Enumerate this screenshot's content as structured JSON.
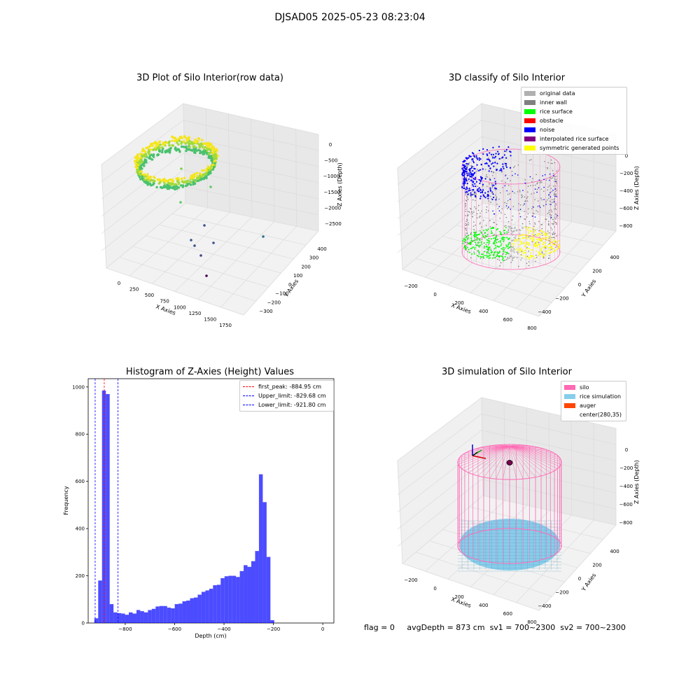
{
  "suptitle": "DJSAD05 2025-05-23 08:23:04",
  "panels": {
    "raw": {
      "title": "3D Plot of Silo Interior(row data)",
      "xlabel": "X Axies",
      "ylabel": "Y Axies",
      "zlabel": "Z Axies (Depth)",
      "xticks": [
        "0",
        "250",
        "500",
        "750",
        "1000",
        "1250",
        "1500",
        "1750"
      ],
      "yticks": [
        "400",
        "300",
        "200",
        "100",
        "0",
        "−100",
        "−200",
        "−300"
      ],
      "zticks": [
        "0",
        "−500",
        "−1000",
        "−1500",
        "−2000",
        "−2500"
      ]
    },
    "classify": {
      "title": "3D classify of Silo Interior",
      "xlabel": "X Axies",
      "ylabel": "Y Axies",
      "zlabel": "Z Axies (Depth)",
      "xticks": [
        "−200",
        "0",
        "200",
        "400",
        "600",
        "800"
      ],
      "yticks": [
        "400",
        "200",
        "0",
        "−200",
        "−400"
      ],
      "zticks": [
        "0",
        "−200",
        "−400",
        "−600",
        "−800"
      ],
      "legend": [
        {
          "label": "original data",
          "color": "#b0b0b0"
        },
        {
          "label": "inner wall",
          "color": "#808080"
        },
        {
          "label": "rice surface",
          "color": "#00ff00"
        },
        {
          "label": "obstacle",
          "color": "#ff0000"
        },
        {
          "label": "noise",
          "color": "#0000ff"
        },
        {
          "label": "interpolated rice surface",
          "color": "#800080"
        },
        {
          "label": "symmetric generated points",
          "color": "#ffff00"
        }
      ]
    },
    "histogram": {
      "title": "Histogram of Z-Axies (Height) Values",
      "legend": [
        {
          "label": "first_peak: -884.95 cm",
          "color": "#ff0000"
        },
        {
          "label": "Upper_limit: -829.68 cm",
          "color": "#0000ff"
        },
        {
          "label": "Lower_limit: -921.80 cm",
          "color": "#0000ff"
        }
      ]
    },
    "simulation": {
      "title": "3D simulation of Silo Interior",
      "xlabel": "X Axies",
      "ylabel": "Y Axies",
      "zlabel": "Z Axies (Depth)",
      "xticks": [
        "−200",
        "0",
        "200",
        "400",
        "600",
        "800"
      ],
      "yticks": [
        "400",
        "200",
        "0",
        "−200",
        "−400"
      ],
      "zticks": [
        "0",
        "−200",
        "−400",
        "−600",
        "−800"
      ],
      "legend": [
        {
          "label": "silo",
          "color": "#ff69b4"
        },
        {
          "label": "rice simulation",
          "color": "#87ceeb"
        },
        {
          "label": "auger",
          "color": "#ff4500"
        },
        {
          "label": "center(280,35)",
          "color": ""
        }
      ]
    }
  },
  "footer": {
    "flag": "flag = 0",
    "avgdepth": "avgDepth = 873 cm",
    "sv1": "sv1 = 700~2300",
    "sv2": "sv2 = 700~2300"
  },
  "colors": {
    "bar": "#0000ff",
    "peak_line": "#ff0000",
    "limit_line": "#0000ff",
    "silo": "#ff69b4",
    "rice": "#87ceeb"
  },
  "chart_data": [
    {
      "type": "scatter",
      "title": "3D Plot of Silo Interior(row data)",
      "note3d": true,
      "xlabel": "X Axies",
      "ylabel": "Y Axies",
      "zlabel": "Z Axies (Depth)",
      "xlim": [
        -150,
        1900
      ],
      "ylim": [
        -350,
        450
      ],
      "zlim": [
        -2800,
        100
      ]
    },
    {
      "type": "scatter",
      "title": "3D classify of Silo Interior",
      "xlabel": "X Axies",
      "ylabel": "Y Axies",
      "zlabel": "Z Axies (Depth)",
      "xlim": [
        -250,
        820
      ],
      "ylim": [
        -480,
        480
      ],
      "zlim": [
        -950,
        50
      ],
      "series": [
        {
          "name": "original data"
        },
        {
          "name": "inner wall"
        },
        {
          "name": "rice surface"
        },
        {
          "name": "obstacle"
        },
        {
          "name": "noise"
        },
        {
          "name": "interpolated rice surface"
        },
        {
          "name": "symmetric generated points"
        }
      ]
    },
    {
      "type": "bar",
      "title": "Histogram of Z-Axies (Height) Values",
      "xlabel": "Depth (cm)",
      "ylabel": "Frequency",
      "xlim": [
        -950,
        45
      ],
      "ylim": [
        0,
        1035
      ],
      "xticks": [
        -800,
        -600,
        -400,
        -200,
        0
      ],
      "yticks": [
        0,
        200,
        400,
        600,
        800,
        1000
      ],
      "bin_width": 15.5,
      "bin_start": -925,
      "values": [
        20,
        180,
        985,
        970,
        80,
        45,
        42,
        40,
        35,
        45,
        40,
        55,
        50,
        45,
        55,
        60,
        70,
        72,
        72,
        65,
        62,
        80,
        82,
        92,
        95,
        105,
        108,
        120,
        132,
        138,
        145,
        160,
        162,
        190,
        198,
        200,
        200,
        195,
        220,
        245,
        238,
        262,
        305,
        630,
        512,
        280,
        12
      ],
      "vlines": [
        {
          "label": "first_peak: -884.95 cm",
          "x": -884.95,
          "color": "#ff0000"
        },
        {
          "label": "Upper_limit: -829.68 cm",
          "x": -829.68,
          "color": "#0000ff"
        },
        {
          "label": "Lower_limit: -921.80 cm",
          "x": -921.8,
          "color": "#0000ff"
        }
      ]
    },
    {
      "type": "scatter",
      "title": "3D simulation of Silo Interior",
      "xlabel": "X Axies",
      "ylabel": "Y Axies",
      "zlabel": "Z Axies (Depth)",
      "xlim": [
        -250,
        820
      ],
      "ylim": [
        -480,
        480
      ],
      "zlim": [
        -950,
        50
      ],
      "series": [
        {
          "name": "silo"
        },
        {
          "name": "rice simulation"
        },
        {
          "name": "auger"
        },
        {
          "name": "center(280,35)"
        }
      ]
    }
  ]
}
